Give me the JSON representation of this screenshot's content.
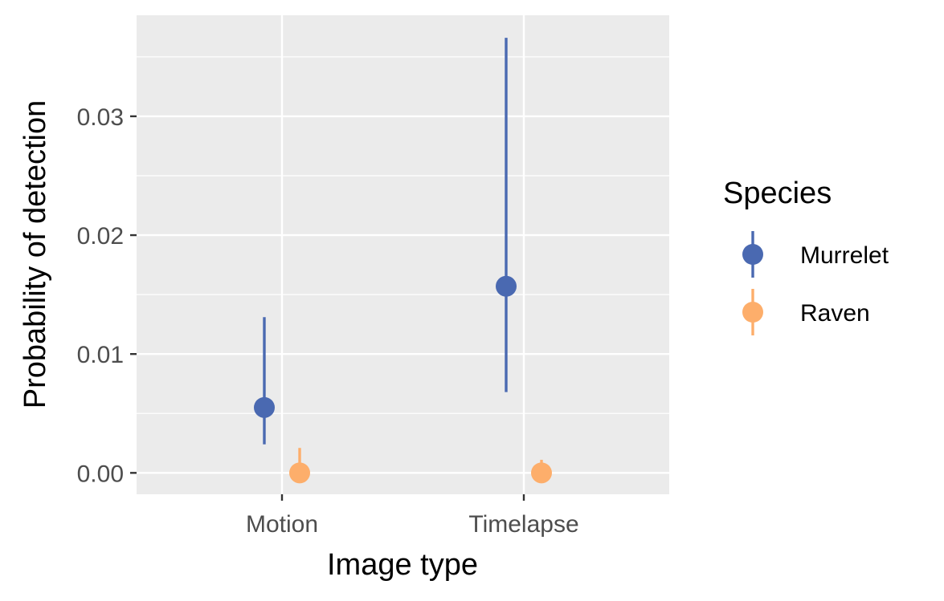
{
  "chart_data": {
    "type": "scatter",
    "xlabel": "Image type",
    "ylabel": "Probability of detection",
    "categories": [
      "Motion",
      "Timelapse"
    ],
    "ylim": [
      -0.0018,
      0.0385
    ],
    "yticks": [
      0.0,
      0.01,
      0.02,
      0.03
    ],
    "ytick_labels": [
      "0.00",
      "0.01",
      "0.02",
      "0.03"
    ],
    "grid": true,
    "legend": {
      "title": "Species",
      "placement": "right"
    },
    "series": [
      {
        "name": "Murrelet",
        "color": "#4a69b1",
        "points": [
          {
            "category": "Motion",
            "y": 0.0055,
            "ymin": 0.0024,
            "ymax": 0.0131
          },
          {
            "category": "Timelapse",
            "y": 0.0157,
            "ymin": 0.0068,
            "ymax": 0.0366
          }
        ]
      },
      {
        "name": "Raven",
        "color": "#fdae6b",
        "points": [
          {
            "category": "Motion",
            "y": 0.0,
            "ymin": 0.0,
            "ymax": 0.0021
          },
          {
            "category": "Timelapse",
            "y": 0.0,
            "ymin": 0.0,
            "ymax": 0.0011
          }
        ]
      }
    ]
  }
}
